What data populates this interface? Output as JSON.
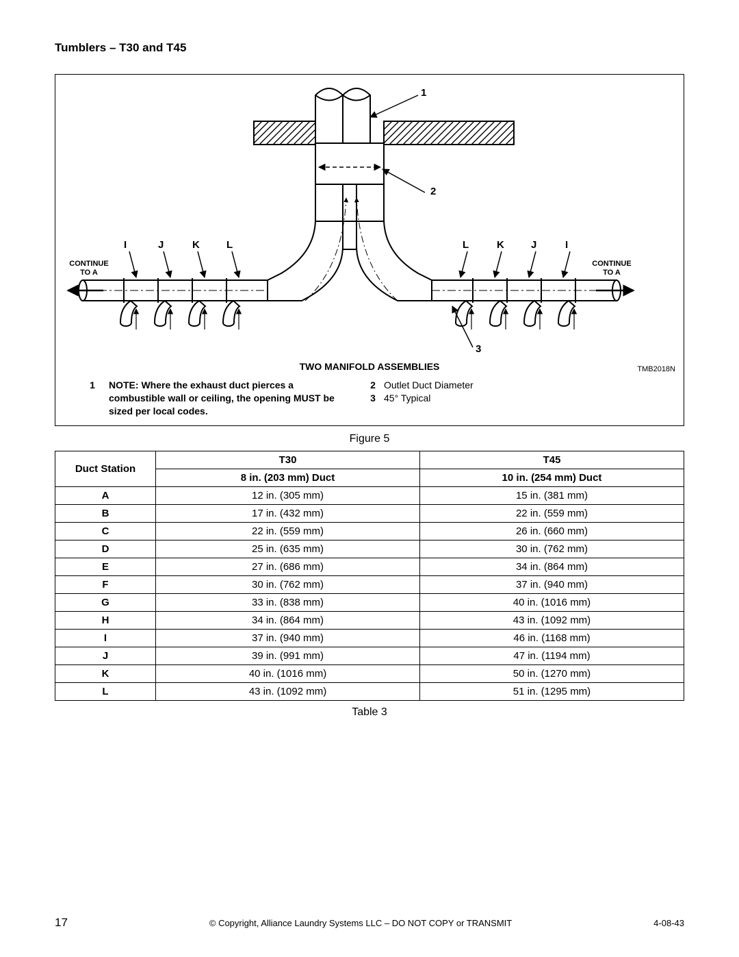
{
  "page": {
    "title": "Tumblers – T30 and T45",
    "figure_caption": "Figure 5",
    "table_caption": "Table 3",
    "footer_page": "17",
    "footer_center": "© Copyright, Alliance Laundry Systems LLC – DO NOT COPY or TRANSMIT",
    "footer_right": "4-08-43"
  },
  "diagram": {
    "title": "TWO MANIFOLD ASSEMBLIES",
    "ref": "TMB2018N",
    "callouts": {
      "n1": "1",
      "n2": "2",
      "n3": "3",
      "I": "I",
      "J": "J",
      "K": "K",
      "L": "L"
    },
    "continue_label_l1": "CONTINUE",
    "continue_label_l2": "TO A",
    "legend": [
      {
        "num": "1",
        "text": "NOTE: Where the exhaust duct pierces a combustible wall or ceiling, the opening MUST be sized per local codes.",
        "bold": true
      },
      {
        "num": "2",
        "text": "Outlet Duct Diameter",
        "bold": false
      },
      {
        "num": "3",
        "text": "45° Typical",
        "bold": false
      }
    ]
  },
  "table": {
    "header_col1": "Duct Station",
    "header_t30": "T30",
    "header_t45": "T45",
    "sub_t30": "8 in. (203 mm) Duct",
    "sub_t45": "10 in. (254 mm) Duct",
    "rows": [
      {
        "s": "A",
        "t30": "12 in. (305 mm)",
        "t45": "15 in. (381 mm)"
      },
      {
        "s": "B",
        "t30": "17 in. (432 mm)",
        "t45": "22 in. (559 mm)"
      },
      {
        "s": "C",
        "t30": "22 in. (559 mm)",
        "t45": "26 in. (660 mm)"
      },
      {
        "s": "D",
        "t30": "25 in. (635 mm)",
        "t45": "30 in. (762 mm)"
      },
      {
        "s": "E",
        "t30": "27 in. (686 mm)",
        "t45": "34 in. (864 mm)"
      },
      {
        "s": "F",
        "t30": "30 in. (762 mm)",
        "t45": "37 in. (940 mm)"
      },
      {
        "s": "G",
        "t30": "33 in. (838 mm)",
        "t45": "40 in. (1016 mm)"
      },
      {
        "s": "H",
        "t30": "34 in. (864 mm)",
        "t45": "43 in. (1092 mm)"
      },
      {
        "s": "I",
        "t30": "37 in. (940 mm)",
        "t45": "46 in. (1168 mm)"
      },
      {
        "s": "J",
        "t30": "39 in. (991 mm)",
        "t45": "47 in. (1194 mm)"
      },
      {
        "s": "K",
        "t30": "40 in. (1016 mm)",
        "t45": "50 in. (1270 mm)"
      },
      {
        "s": "L",
        "t30": "43 in. (1092 mm)",
        "t45": "51 in. (1295 mm)"
      }
    ]
  },
  "style": {
    "stroke": "#000000",
    "stroke_width": 2,
    "hatch_spacing": 10
  }
}
